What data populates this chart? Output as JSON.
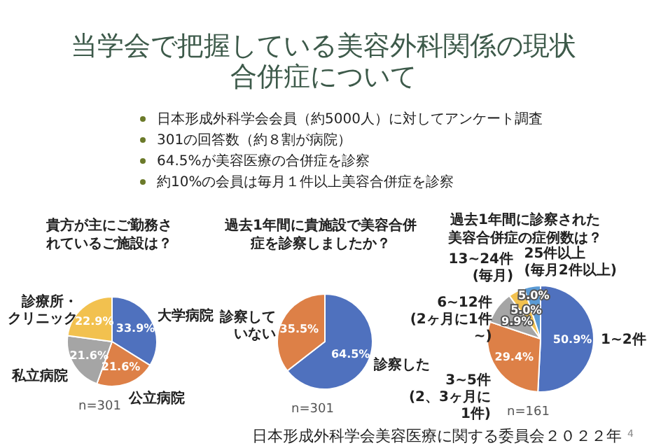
{
  "chart_data": [
    {
      "type": "other",
      "title": "当学会で把握している美容外科関係の現状合併症について",
      "annotations": [
        "日本形成外科学会会員（約5000人）に対してアンケート調査",
        "301の回答数（約８割が病院）",
        "64.5%が美容医療の合併症を診察",
        "約10%の会員は毎月１件以上美容合併症を診察",
        "日本形成外科学会美容医療に関する委員会２０２２年",
        "4"
      ]
    },
    {
      "type": "pie",
      "title": "貴方が主にご勤務されているご施設は？",
      "categories": [
        "大学病院",
        "公立病院",
        "私立病院",
        "診療所・クリニック"
      ],
      "values": [
        33.9,
        21.6,
        21.6,
        22.9
      ],
      "value_labels": [
        "33.9%",
        "21.6%",
        "21.6%",
        "22.9%"
      ],
      "colors": [
        "#4f71be",
        "#dd8047",
        "#a5a5a5",
        "#f2c14f"
      ],
      "legend": false,
      "annotations": [
        "n=301"
      ]
    },
    {
      "type": "pie",
      "title": "過去1年間に貴施設で美容合併症を診察しましたか？",
      "categories": [
        "診察した",
        "診察していない"
      ],
      "values": [
        64.5,
        35.5
      ],
      "value_labels": [
        "64.5%",
        "35.5%"
      ],
      "colors": [
        "#4f71be",
        "#dd8047"
      ],
      "legend": false,
      "annotations": [
        "n=301"
      ]
    },
    {
      "type": "pie",
      "title": "過去1年間に診察された美容合併症の症例数は？",
      "categories": [
        "1~2件",
        "3~5件(2、3ヶ月に1件)",
        "6~12件(2ヶ月に1件~)",
        "13~24件(毎月)",
        "25件以上(毎月2件以上)"
      ],
      "values": [
        50.9,
        29.4,
        9.9,
        5.0,
        5.0
      ],
      "value_labels": [
        "50.9%",
        "29.4%",
        "9.9%",
        "5.0%",
        "5.0%"
      ],
      "colors": [
        "#4f71be",
        "#dd8047",
        "#a5a5a5",
        "#f2c14f",
        "#5b9bd5"
      ],
      "legend": false,
      "annotations": [
        "n=161"
      ]
    }
  ]
}
